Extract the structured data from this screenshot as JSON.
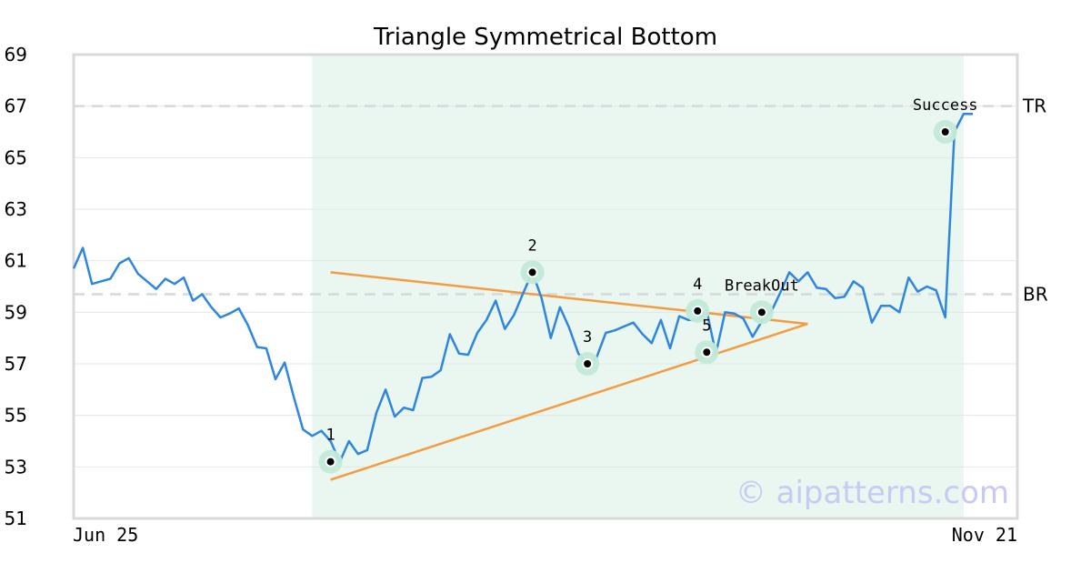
{
  "chart_data": {
    "type": "line",
    "title": "Triangle Symmetrical Bottom",
    "xlabel": "",
    "ylabel": "",
    "ylim": [
      51,
      69
    ],
    "yticks": [
      51,
      53,
      55,
      57,
      59,
      61,
      63,
      65,
      67,
      69
    ],
    "x_first_label": "Jun 25",
    "x_last_label": "Nov 21",
    "grid": true,
    "legend": "none",
    "colors": {
      "price": "#2e86de",
      "trendline": "#f39c42",
      "pattern_zone": "#eaf6f0",
      "marker_halo": "#c2ead7",
      "reference": "#d5d8dc",
      "watermark": "#c9c9f5"
    },
    "series": [
      {
        "values": [
          60.7,
          61.5,
          60.1,
          60.2,
          60.3,
          60.9,
          61.1,
          60.5,
          60.2,
          59.9,
          60.3,
          60.1,
          60.35,
          59.45,
          59.7,
          59.2,
          58.8,
          58.95,
          59.15,
          58.5,
          57.65,
          57.6,
          56.4,
          57.05,
          55.7,
          54.45,
          54.2,
          54.4,
          54.0,
          53.2,
          54.0,
          53.5,
          53.65,
          55.1,
          56.0,
          54.95,
          55.3,
          55.2,
          56.45,
          56.5,
          56.75,
          58.15,
          57.4,
          57.35,
          58.2,
          58.7,
          59.45,
          58.35,
          58.9,
          59.75,
          60.55,
          59.55,
          58.0,
          59.2,
          58.4,
          57.4,
          57.0,
          57.25,
          58.2,
          58.3,
          58.45,
          58.6,
          58.15,
          57.8,
          58.7,
          57.6,
          58.85,
          58.7,
          58.7,
          59.05,
          57.4,
          59.0,
          58.95,
          58.75,
          58.05,
          58.65,
          59.0,
          59.75,
          60.55,
          60.2,
          60.55,
          59.95,
          59.9,
          59.55,
          59.6,
          60.2,
          59.95,
          58.6,
          59.25,
          59.25,
          59.0,
          60.35,
          59.8,
          60.0,
          59.85,
          58.8,
          66.0,
          66.7,
          66.7
        ]
      }
    ],
    "pattern_zone": {
      "start_index": 26,
      "end_index": 97
    },
    "reference_lines": [
      {
        "label": "TR",
        "value": 67.0
      },
      {
        "label": "BR",
        "value": 59.7
      }
    ],
    "trendlines": [
      {
        "from": {
          "index": 28,
          "value": 60.55
        },
        "to": {
          "index": 80,
          "value": 58.55
        }
      },
      {
        "from": {
          "index": 28,
          "value": 52.5
        },
        "to": {
          "index": 80,
          "value": 58.55
        }
      }
    ],
    "markers": [
      {
        "label": "1",
        "index": 28,
        "value": 53.2,
        "label_pos": "above"
      },
      {
        "label": "2",
        "index": 50,
        "value": 60.55,
        "label_pos": "above"
      },
      {
        "label": "3",
        "index": 56,
        "value": 57.0,
        "label_pos": "above"
      },
      {
        "label": "4",
        "index": 68,
        "value": 59.05,
        "label_pos": "above"
      },
      {
        "label": "5",
        "index": 69,
        "value": 57.45,
        "label_pos": "above"
      },
      {
        "label": "BreakOut",
        "index": 75,
        "value": 59.0,
        "label_pos": "above"
      },
      {
        "label": "Success",
        "index": 95,
        "value": 66.0,
        "label_pos": "above"
      }
    ],
    "watermark": "© aipatterns.com"
  }
}
